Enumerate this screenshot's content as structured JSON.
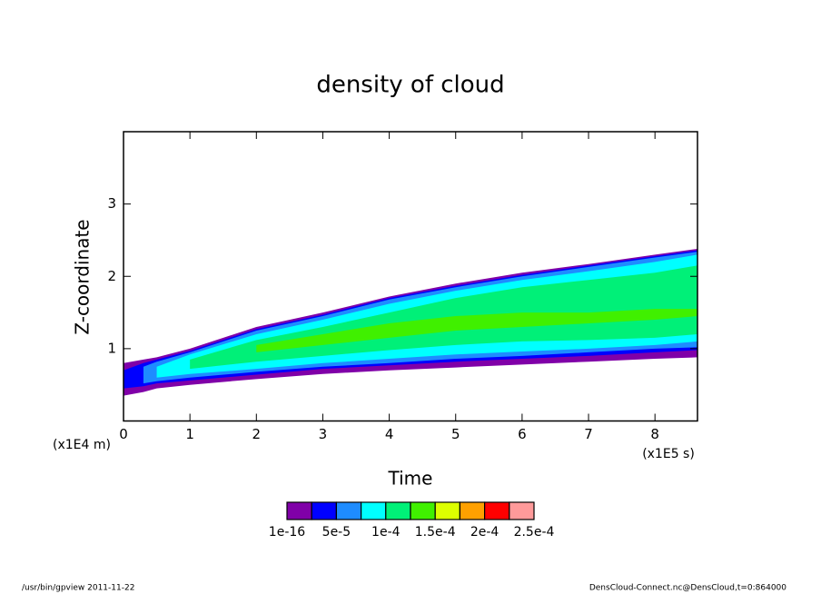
{
  "chart_data": {
    "type": "filled-contour",
    "title": "density of cloud",
    "x_label": "Time",
    "y_label": "Z-coordinate",
    "x_unit": "(x1E5 s)",
    "y_unit": "(x1E4 m)",
    "xlim": [
      0,
      8.64
    ],
    "ylim": [
      0,
      4
    ],
    "xticks": [
      0,
      1,
      2,
      3,
      4,
      5,
      6,
      7,
      8
    ],
    "yticks": [
      1,
      2,
      3
    ],
    "x": [
      0,
      0.3,
      0.5,
      1,
      2,
      3,
      4,
      5,
      6,
      7,
      8,
      8.64
    ],
    "bands": [
      {
        "color": "#8000a8",
        "lower": [
          0.35,
          0.4,
          0.45,
          0.5,
          0.58,
          0.65,
          0.7,
          0.74,
          0.78,
          0.82,
          0.86,
          0.88
        ],
        "upper": [
          0.8,
          0.85,
          0.88,
          1.0,
          1.3,
          1.5,
          1.72,
          1.9,
          2.05,
          2.17,
          2.3,
          2.38
        ]
      },
      {
        "color": "#0000ff",
        "lower": [
          0.45,
          0.48,
          0.52,
          0.56,
          0.64,
          0.72,
          0.77,
          0.82,
          0.86,
          0.9,
          0.95,
          0.98
        ],
        "upper": [
          0.7,
          0.8,
          0.85,
          0.97,
          1.27,
          1.47,
          1.7,
          1.87,
          2.02,
          2.15,
          2.28,
          2.36
        ]
      },
      {
        "color": "#1e8cff",
        "lower": [
          null,
          0.52,
          0.55,
          0.6,
          0.68,
          0.75,
          0.8,
          0.86,
          0.9,
          0.95,
          1.0,
          1.02
        ],
        "upper": [
          null,
          0.75,
          0.82,
          0.95,
          1.25,
          1.45,
          1.68,
          1.85,
          2.0,
          2.13,
          2.26,
          2.34
        ]
      },
      {
        "color": "#00ffff",
        "lower": [
          null,
          null,
          0.6,
          0.65,
          0.72,
          0.8,
          0.86,
          0.92,
          0.96,
          1.0,
          1.05,
          1.1
        ],
        "upper": [
          null,
          null,
          0.75,
          0.92,
          1.2,
          1.4,
          1.62,
          1.8,
          1.95,
          2.07,
          2.2,
          2.3
        ]
      },
      {
        "color": "#00f078",
        "lower": [
          null,
          null,
          null,
          0.72,
          0.82,
          0.9,
          0.98,
          1.05,
          1.1,
          1.12,
          1.15,
          1.2
        ],
        "upper": [
          null,
          null,
          null,
          0.85,
          1.12,
          1.3,
          1.5,
          1.7,
          1.85,
          1.95,
          2.05,
          2.15
        ]
      },
      {
        "color": "#40f000",
        "lower": [
          null,
          null,
          null,
          null,
          0.95,
          1.05,
          1.15,
          1.25,
          1.3,
          1.35,
          1.4,
          1.45
        ],
        "upper": [
          null,
          null,
          null,
          null,
          1.05,
          1.2,
          1.35,
          1.45,
          1.5,
          1.5,
          1.55,
          1.55
        ]
      }
    ],
    "colorbar": {
      "colors": [
        "#8000a8",
        "#0000ff",
        "#1e8cff",
        "#00ffff",
        "#00f078",
        "#40f000",
        "#ddff00",
        "#ffa000",
        "#ff0000",
        "#ff9a9a"
      ],
      "ticks": [
        {
          "value": 1e-16,
          "label": "1e-16"
        },
        {
          "value": 5e-05,
          "label": "5e-5"
        },
        {
          "value": 0.0001,
          "label": "1e-4"
        },
        {
          "value": 0.00015,
          "label": "1.5e-4"
        },
        {
          "value": 0.0002,
          "label": "2e-4"
        },
        {
          "value": 0.00025,
          "label": "2.5e-4"
        }
      ]
    },
    "footer_left": "/usr/bin/gpview   2011-11-22",
    "footer_right": "DensCloud-Connect.nc@DensCloud,t=0:864000"
  }
}
